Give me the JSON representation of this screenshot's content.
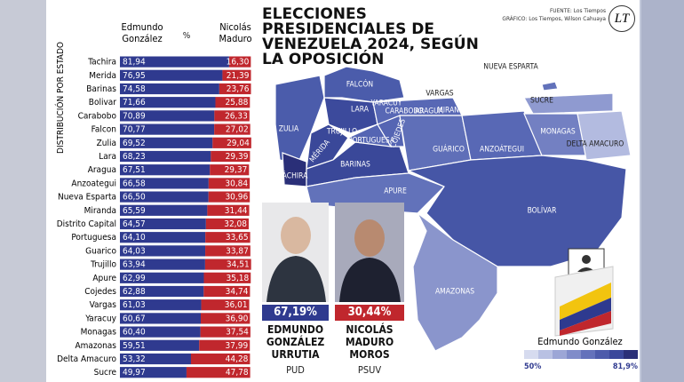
{
  "header": {
    "title": "ELECCIONES PRESIDENCIALES DE VENEZUELA 2024, SEGÚN LA OPOSICIÓN",
    "source": "FUENTE: Los Tiempos",
    "credit": "GRÁFICO: Los Tiempos, Wilson Cahuaya",
    "logo": "LT"
  },
  "chart_data": {
    "type": "bar",
    "stacked": true,
    "orientation": "horizontal",
    "axis_label": "DISTRIBUCIÓN POR ESTADO",
    "unit_symbol": "%",
    "categories": [
      "Tachira",
      "Merida",
      "Barinas",
      "Bolivar",
      "Carabobo",
      "Falcon",
      "Zulia",
      "Lara",
      "Aragua",
      "Anzoategui",
      "Nueva Esparta",
      "Miranda",
      "Distrito Capital",
      "Portuguesa",
      "Guarico",
      "Trujillo",
      "Apure",
      "Cojedes",
      "Vargas",
      "Yaracuy",
      "Monagas",
      "Amazonas",
      "Delta Amacuro",
      "Sucre"
    ],
    "xlim": [
      0,
      100
    ],
    "series": [
      {
        "name": "Edmundo González",
        "color": "#2f3a8f",
        "values": [
          81.94,
          76.95,
          74.58,
          71.66,
          70.89,
          70.77,
          69.52,
          68.23,
          67.51,
          66.58,
          66.5,
          65.59,
          64.57,
          64.1,
          64.03,
          63.94,
          62.99,
          62.88,
          61.03,
          60.67,
          60.4,
          59.51,
          53.32,
          49.97
        ],
        "value_labels": [
          "81,94",
          "76,95",
          "74,58",
          "71,66",
          "70,89",
          "70,77",
          "69,52",
          "68,23",
          "67,51",
          "66,58",
          "66,50",
          "65,59",
          "64,57",
          "64,10",
          "64,03",
          "63,94",
          "62,99",
          "62,88",
          "61,03",
          "60,67",
          "60,40",
          "59,51",
          "53,32",
          "49,97"
        ]
      },
      {
        "name": "Nicolás Maduro",
        "color": "#c0272d",
        "values": [
          16.3,
          21.39,
          23.76,
          25.88,
          26.33,
          27.02,
          29.04,
          29.39,
          29.37,
          30.84,
          30.96,
          31.44,
          32.08,
          33.65,
          33.87,
          34.51,
          35.18,
          34.74,
          36.01,
          36.9,
          37.54,
          37.99,
          44.28,
          47.78
        ],
        "value_labels": [
          "16,30",
          "21,39",
          "23,76",
          "25,88",
          "26,33",
          "27,02",
          "29,04",
          "29,39",
          "29,37",
          "30,84",
          "30,96",
          "31,44",
          "32,08",
          "33,65",
          "33,87",
          "34,51",
          "35,18",
          "34,74",
          "36,01",
          "36,90",
          "37,54",
          "37,99",
          "44,28",
          "47,78"
        ]
      }
    ]
  },
  "candidates": [
    {
      "percent": "67,19%",
      "name": "EDMUNDO GONZÁLEZ URRUTIA",
      "party": "PUD"
    },
    {
      "percent": "30,44%",
      "name": "NICOLÁS MADURO MOROS",
      "party": "PSUV"
    }
  ],
  "map": {
    "labels": [
      "FALCÓN",
      "VARGAS",
      "NUEVA ESPARTA",
      "SUCRE",
      "ZULIA",
      "LARA",
      "YARACUY",
      "CARABOBO",
      "ARAGUA",
      "MIRANDA",
      "TRUJILLO",
      "PORTUGUESA",
      "COJEDES",
      "MONAGAS",
      "DELTA AMACURO",
      "MÉRIDA",
      "GUÁRICO",
      "ANZOÁTEGUI",
      "BARINAS",
      "TÁCHIRA",
      "APURE",
      "BOLÍVAR",
      "AMAZONAS"
    ]
  },
  "legend": {
    "title": "Edmundo González",
    "min": "50%",
    "max": "81,9%"
  }
}
